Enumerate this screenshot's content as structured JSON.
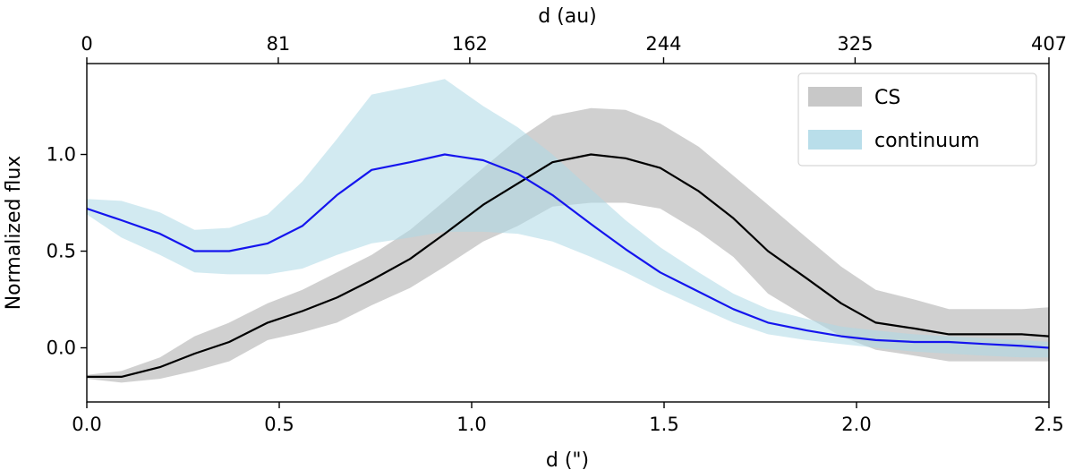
{
  "chart_data": {
    "type": "line",
    "title": "",
    "xlabel": "d (\")",
    "ylabel": "Normalized flux",
    "top_xlabel": "d (au)",
    "xlim": [
      0,
      2.5
    ],
    "ylim": [
      -0.28,
      1.47
    ],
    "x_ticks": [
      0.0,
      0.5,
      1.0,
      1.5,
      2.0,
      2.5
    ],
    "x_tick_labels": [
      "0.0",
      "0.5",
      "1.0",
      "1.5",
      "2.0",
      "2.5"
    ],
    "y_ticks": [
      0.0,
      0.5,
      1.0
    ],
    "y_tick_labels": [
      "0.0",
      "0.5",
      "1.0"
    ],
    "top_ticks_au": [
      0,
      81,
      162,
      244,
      325,
      407
    ],
    "top_tick_labels": [
      "0",
      "81",
      "162",
      "244",
      "325",
      "407"
    ],
    "top_axis_max_au": 407,
    "legend_position": "top-right",
    "series": [
      {
        "name": "CS",
        "line_color": "#000000",
        "band_color": "#c8c8c8",
        "x": [
          0.0,
          0.09,
          0.19,
          0.28,
          0.37,
          0.47,
          0.56,
          0.65,
          0.74,
          0.84,
          0.93,
          1.03,
          1.12,
          1.21,
          1.31,
          1.4,
          1.49,
          1.59,
          1.68,
          1.77,
          1.87,
          1.96,
          2.05,
          2.15,
          2.24,
          2.33,
          2.43,
          2.5
        ],
        "mean": [
          -0.15,
          -0.15,
          -0.1,
          -0.03,
          0.03,
          0.13,
          0.19,
          0.26,
          0.35,
          0.46,
          0.59,
          0.74,
          0.85,
          0.96,
          1.0,
          0.98,
          0.93,
          0.81,
          0.67,
          0.5,
          0.36,
          0.23,
          0.13,
          0.1,
          0.07,
          0.07,
          0.07,
          0.06
        ],
        "lower": [
          -0.16,
          -0.18,
          -0.16,
          -0.12,
          -0.07,
          0.04,
          0.08,
          0.13,
          0.22,
          0.31,
          0.42,
          0.55,
          0.63,
          0.73,
          0.75,
          0.75,
          0.72,
          0.6,
          0.47,
          0.28,
          0.16,
          0.06,
          -0.01,
          -0.04,
          -0.07,
          -0.07,
          -0.07,
          -0.07
        ],
        "upper": [
          -0.14,
          -0.12,
          -0.05,
          0.06,
          0.13,
          0.23,
          0.3,
          0.39,
          0.48,
          0.61,
          0.76,
          0.93,
          1.08,
          1.2,
          1.24,
          1.23,
          1.16,
          1.04,
          0.89,
          0.74,
          0.57,
          0.42,
          0.3,
          0.25,
          0.2,
          0.2,
          0.2,
          0.21
        ]
      },
      {
        "name": "continuum",
        "line_color": "#1515ee",
        "band_color": "#add8e6",
        "band_opacity": 0.55,
        "x": [
          0.0,
          0.09,
          0.19,
          0.28,
          0.37,
          0.47,
          0.56,
          0.65,
          0.74,
          0.84,
          0.93,
          1.03,
          1.12,
          1.21,
          1.31,
          1.4,
          1.49,
          1.59,
          1.68,
          1.77,
          1.87,
          1.96,
          2.05,
          2.15,
          2.24,
          2.33,
          2.43,
          2.5
        ],
        "mean": [
          0.72,
          0.66,
          0.59,
          0.5,
          0.5,
          0.54,
          0.63,
          0.79,
          0.92,
          0.96,
          1.0,
          0.97,
          0.9,
          0.79,
          0.64,
          0.51,
          0.39,
          0.29,
          0.2,
          0.13,
          0.09,
          0.06,
          0.04,
          0.03,
          0.03,
          0.02,
          0.01,
          0.0
        ],
        "lower": [
          0.69,
          0.57,
          0.48,
          0.39,
          0.38,
          0.38,
          0.41,
          0.48,
          0.54,
          0.57,
          0.6,
          0.6,
          0.59,
          0.55,
          0.47,
          0.39,
          0.3,
          0.21,
          0.13,
          0.07,
          0.04,
          0.02,
          0.0,
          -0.02,
          -0.03,
          -0.04,
          -0.05,
          -0.05
        ],
        "upper": [
          0.77,
          0.76,
          0.7,
          0.61,
          0.62,
          0.69,
          0.86,
          1.08,
          1.31,
          1.35,
          1.39,
          1.25,
          1.14,
          1.0,
          0.82,
          0.66,
          0.52,
          0.39,
          0.28,
          0.2,
          0.15,
          0.11,
          0.09,
          0.07,
          0.06,
          0.05,
          0.04,
          0.03
        ]
      }
    ]
  }
}
